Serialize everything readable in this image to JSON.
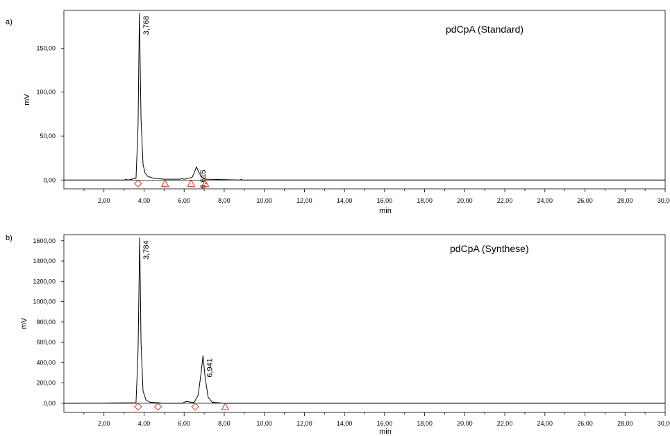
{
  "chart_data": [
    {
      "type": "line",
      "panel_label": "a)",
      "title": "pdCpA (Standard)",
      "xlabel": "min",
      "ylabel": "mV",
      "xlim": [
        0,
        30
      ],
      "ylim": [
        -10,
        193
      ],
      "x_ticks": [
        2,
        4,
        6,
        8,
        10,
        12,
        14,
        16,
        18,
        20,
        22,
        24,
        26,
        28,
        30
      ],
      "x_tick_labels": [
        "2,00",
        "4,00",
        "6,00",
        "8,00",
        "10,00",
        "12,00",
        "14,00",
        "16,00",
        "18,00",
        "20,00",
        "22,00",
        "24,00",
        "26,00",
        "28,00",
        "30,00"
      ],
      "y_ticks": [
        0,
        50,
        100,
        150
      ],
      "y_tick_labels": [
        "0,00",
        "50,00",
        "100,00",
        "150,00"
      ],
      "series": [
        {
          "x": [
            0,
            3.0,
            3.1,
            3.2,
            3.6,
            3.7,
            3.768,
            3.85,
            3.95,
            4.05,
            4.2,
            4.5,
            5.0,
            5.8,
            5.9,
            6.0,
            6.4,
            6.5,
            6.615,
            6.75,
            6.9,
            7.1,
            8.8,
            8.85,
            8.9,
            9.0,
            30
          ],
          "y": [
            0,
            0,
            0.8,
            0,
            2,
            60,
            190,
            70,
            18,
            8,
            4,
            2,
            1,
            1,
            1.5,
            1,
            3,
            8,
            15,
            8,
            3,
            1,
            0,
            1,
            0,
            0,
            0
          ]
        }
      ],
      "peaks": [
        {
          "rt": 3.768,
          "label": "3,768",
          "height": 190
        },
        {
          "rt": 6.615,
          "label": "6,615",
          "height": 15
        }
      ],
      "integration_markers": [
        {
          "shape": "diamond",
          "x": 3.7
        },
        {
          "shape": "triangle",
          "x": 5.05
        },
        {
          "shape": "triangle",
          "x": 6.35
        },
        {
          "shape": "triangle",
          "x": 7.05
        }
      ]
    },
    {
      "type": "line",
      "panel_label": "b)",
      "title": "pdCpA (Synthese)",
      "xlabel": "min",
      "ylabel": "mV",
      "xlim": [
        0,
        30
      ],
      "ylim": [
        -90,
        1660
      ],
      "x_ticks": [
        2,
        4,
        6,
        8,
        10,
        12,
        14,
        16,
        18,
        20,
        22,
        24,
        26,
        28,
        30
      ],
      "x_tick_labels": [
        "2,00",
        "4,00",
        "6,00",
        "8,00",
        "10,00",
        "12,00",
        "14,00",
        "16,00",
        "18,00",
        "20,00",
        "22,00",
        "24,00",
        "26,00",
        "28,00",
        "30,00"
      ],
      "y_ticks": [
        0,
        200,
        400,
        600,
        800,
        1000,
        1200,
        1400,
        1600
      ],
      "y_tick_labels": [
        "0,00",
        "200,00",
        "400,00",
        "600,00",
        "800,00",
        "1000,00",
        "1200,00",
        "1400,00",
        "1600,00"
      ],
      "series": [
        {
          "x": [
            0,
            3.6,
            3.7,
            3.784,
            3.85,
            3.95,
            4.1,
            4.3,
            4.7,
            5.0,
            5.9,
            6.1,
            6.3,
            6.5,
            6.7,
            6.85,
            6.941,
            7.05,
            7.2,
            7.4,
            8.0,
            30
          ],
          "y": [
            0,
            5,
            500,
            1630,
            600,
            120,
            30,
            10,
            5,
            0,
            0,
            18,
            12,
            8,
            80,
            300,
            470,
            250,
            60,
            10,
            0,
            0
          ]
        }
      ],
      "peaks": [
        {
          "rt": 3.784,
          "label": "3,784",
          "height": 1630
        },
        {
          "rt": 6.941,
          "label": "6,941",
          "height": 470
        }
      ],
      "integration_markers": [
        {
          "shape": "diamond",
          "x": 3.7
        },
        {
          "shape": "diamond",
          "x": 4.7
        },
        {
          "shape": "diamond",
          "x": 6.55
        },
        {
          "shape": "triangle",
          "x": 8.05
        }
      ]
    }
  ]
}
